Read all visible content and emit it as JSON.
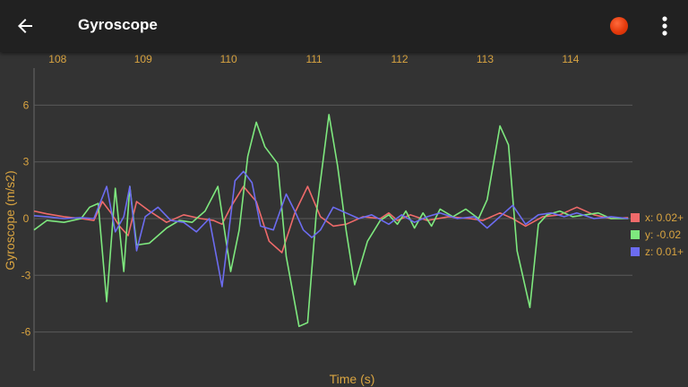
{
  "appbar": {
    "title": "Gyroscope",
    "back_icon": "arrow-left-icon",
    "record_icon": "record-dot-icon",
    "record_color": "#e53a0c",
    "menu_icon": "more-vert-icon"
  },
  "chart_data": {
    "type": "line",
    "xlabel": "Time (s)",
    "ylabel": "Gyroscope (m/s2)",
    "xlim": [
      107.85,
      114.85
    ],
    "ylim": [
      -8,
      8
    ],
    "x_ticks": [
      108,
      109,
      110,
      111,
      112,
      113,
      114
    ],
    "y_ticks": [
      6,
      3,
      0,
      -3,
      -6
    ],
    "grid": true,
    "legend_position": "right",
    "series": [
      {
        "name": "x: 0.02+",
        "color": "#ef6a6a",
        "points": [
          [
            107.85,
            0.4
          ],
          [
            108.0,
            0.25
          ],
          [
            108.2,
            0.1
          ],
          [
            108.4,
            0.0
          ],
          [
            108.55,
            -0.1
          ],
          [
            108.65,
            0.9
          ],
          [
            108.75,
            0.3
          ],
          [
            108.85,
            -0.4
          ],
          [
            108.95,
            -0.9
          ],
          [
            109.05,
            0.9
          ],
          [
            109.2,
            0.4
          ],
          [
            109.4,
            -0.2
          ],
          [
            109.6,
            0.2
          ],
          [
            109.8,
            0.0
          ],
          [
            109.95,
            -0.1
          ],
          [
            110.05,
            -0.3
          ],
          [
            110.15,
            0.6
          ],
          [
            110.3,
            1.7
          ],
          [
            110.45,
            0.9
          ],
          [
            110.6,
            -1.2
          ],
          [
            110.75,
            -1.8
          ],
          [
            110.9,
            0.3
          ],
          [
            111.05,
            1.7
          ],
          [
            111.2,
            0.1
          ],
          [
            111.35,
            -0.4
          ],
          [
            111.5,
            -0.3
          ],
          [
            111.7,
            0.1
          ],
          [
            111.9,
            0.0
          ],
          [
            112.0,
            0.3
          ],
          [
            112.1,
            -0.1
          ],
          [
            112.25,
            0.2
          ],
          [
            112.45,
            -0.1
          ],
          [
            112.7,
            0.1
          ],
          [
            112.95,
            0.0
          ],
          [
            113.1,
            -0.1
          ],
          [
            113.3,
            0.3
          ],
          [
            113.45,
            0.0
          ],
          [
            113.6,
            -0.4
          ],
          [
            113.8,
            0.1
          ],
          [
            114.0,
            0.2
          ],
          [
            114.2,
            0.6
          ],
          [
            114.4,
            0.2
          ],
          [
            114.6,
            0.0
          ],
          [
            114.8,
            0.05
          ]
        ]
      },
      {
        "name": "y: -0.02",
        "color": "#7ee87e",
        "points": [
          [
            107.85,
            -0.6
          ],
          [
            108.0,
            -0.1
          ],
          [
            108.2,
            -0.2
          ],
          [
            108.4,
            0.0
          ],
          [
            108.5,
            0.6
          ],
          [
            108.6,
            0.8
          ],
          [
            108.7,
            -4.4
          ],
          [
            108.8,
            1.6
          ],
          [
            108.9,
            -2.8
          ],
          [
            108.97,
            1.7
          ],
          [
            109.05,
            -1.4
          ],
          [
            109.2,
            -1.3
          ],
          [
            109.4,
            -0.5
          ],
          [
            109.55,
            -0.1
          ],
          [
            109.7,
            -0.2
          ],
          [
            109.85,
            0.4
          ],
          [
            110.0,
            1.7
          ],
          [
            110.15,
            -2.8
          ],
          [
            110.25,
            -0.6
          ],
          [
            110.35,
            3.3
          ],
          [
            110.45,
            5.1
          ],
          [
            110.55,
            3.8
          ],
          [
            110.7,
            2.9
          ],
          [
            110.8,
            -2.0
          ],
          [
            110.95,
            -5.7
          ],
          [
            111.05,
            -5.5
          ],
          [
            111.15,
            0.2
          ],
          [
            111.3,
            5.5
          ],
          [
            111.4,
            2.8
          ],
          [
            111.5,
            -0.6
          ],
          [
            111.6,
            -3.5
          ],
          [
            111.75,
            -1.2
          ],
          [
            111.9,
            -0.1
          ],
          [
            112.0,
            0.2
          ],
          [
            112.1,
            -0.3
          ],
          [
            112.2,
            0.4
          ],
          [
            112.3,
            -0.5
          ],
          [
            112.4,
            0.3
          ],
          [
            112.5,
            -0.4
          ],
          [
            112.6,
            0.5
          ],
          [
            112.75,
            0.1
          ],
          [
            112.9,
            0.5
          ],
          [
            113.05,
            0.0
          ],
          [
            113.15,
            1.0
          ],
          [
            113.3,
            4.9
          ],
          [
            113.4,
            3.9
          ],
          [
            113.5,
            -1.7
          ],
          [
            113.65,
            -4.7
          ],
          [
            113.75,
            -0.3
          ],
          [
            113.85,
            0.2
          ],
          [
            114.0,
            0.4
          ],
          [
            114.15,
            0.1
          ],
          [
            114.3,
            0.2
          ],
          [
            114.45,
            0.3
          ],
          [
            114.6,
            0.0
          ],
          [
            114.8,
            0.0
          ]
        ]
      },
      {
        "name": "z: 0.01+",
        "color": "#6c6cf0",
        "points": [
          [
            107.85,
            0.15
          ],
          [
            108.0,
            0.1
          ],
          [
            108.2,
            0.0
          ],
          [
            108.4,
            0.05
          ],
          [
            108.55,
            0.0
          ],
          [
            108.7,
            1.7
          ],
          [
            108.8,
            -0.7
          ],
          [
            108.9,
            0.1
          ],
          [
            108.97,
            1.7
          ],
          [
            109.05,
            -1.7
          ],
          [
            109.15,
            0.1
          ],
          [
            109.3,
            0.6
          ],
          [
            109.45,
            -0.1
          ],
          [
            109.6,
            -0.2
          ],
          [
            109.75,
            -0.7
          ],
          [
            109.9,
            0.0
          ],
          [
            110.05,
            -3.6
          ],
          [
            110.2,
            2.0
          ],
          [
            110.3,
            2.5
          ],
          [
            110.4,
            1.9
          ],
          [
            110.5,
            -0.4
          ],
          [
            110.65,
            -0.6
          ],
          [
            110.8,
            1.3
          ],
          [
            110.9,
            0.4
          ],
          [
            111.0,
            -0.6
          ],
          [
            111.1,
            -1.0
          ],
          [
            111.2,
            -0.6
          ],
          [
            111.35,
            0.6
          ],
          [
            111.5,
            0.3
          ],
          [
            111.65,
            0.0
          ],
          [
            111.8,
            0.2
          ],
          [
            112.0,
            -0.3
          ],
          [
            112.15,
            0.2
          ],
          [
            112.3,
            -0.2
          ],
          [
            112.45,
            0.1
          ],
          [
            112.6,
            0.3
          ],
          [
            112.8,
            0.0
          ],
          [
            113.0,
            0.1
          ],
          [
            113.15,
            -0.5
          ],
          [
            113.3,
            0.1
          ],
          [
            113.45,
            0.7
          ],
          [
            113.6,
            -0.3
          ],
          [
            113.75,
            0.2
          ],
          [
            113.9,
            0.3
          ],
          [
            114.05,
            0.1
          ],
          [
            114.2,
            0.3
          ],
          [
            114.4,
            0.0
          ],
          [
            114.6,
            0.1
          ],
          [
            114.8,
            0.0
          ]
        ]
      }
    ]
  }
}
